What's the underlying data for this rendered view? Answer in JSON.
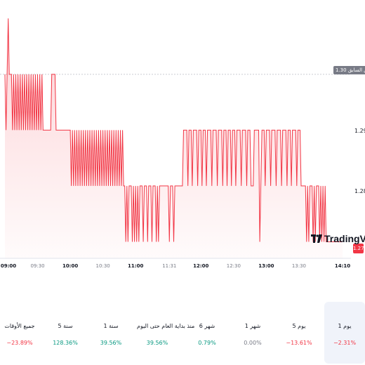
{
  "colors": {
    "down": "#f23645",
    "up": "#089981",
    "flat": "#787b86",
    "text": "#131722",
    "prev_line": "#c9cbd1"
  },
  "chart_data": {
    "type": "area",
    "x_ticks": [
      {
        "label": "09:00",
        "major": true
      },
      {
        "label": "09:30",
        "major": false
      },
      {
        "label": "10:00",
        "major": true
      },
      {
        "label": "10:30",
        "major": false
      },
      {
        "label": "11:00",
        "major": true
      },
      {
        "label": "11:31",
        "major": false
      },
      {
        "label": "12:00",
        "major": true
      },
      {
        "label": "12:30",
        "major": false
      },
      {
        "label": "13:00",
        "major": true
      },
      {
        "label": "13:30",
        "major": false
      },
      {
        "label": "14:10",
        "major": true
      }
    ],
    "y_ticks": [
      "1.29",
      "1.28"
    ],
    "ylim": [
      1.2683,
      1.3113
    ],
    "previous_close": {
      "label": "الإغلاق السابق",
      "value": "1.30"
    },
    "last_price": "1.27",
    "series": [
      {
        "points": [
          [
            "09:00",
            1.3
          ],
          [
            "09:01",
            1.29
          ],
          [
            "09:02",
            1.3
          ],
          [
            "09:03",
            1.31
          ],
          [
            "09:04",
            1.3
          ],
          [
            "09:06",
            1.3
          ],
          [
            "09:07",
            1.29
          ],
          [
            "09:08",
            1.3
          ],
          [
            "09:09",
            1.29
          ],
          [
            "09:10",
            1.3
          ],
          [
            "09:11",
            1.29
          ],
          [
            "09:12",
            1.3
          ],
          [
            "09:13",
            1.29
          ],
          [
            "09:14",
            1.3
          ],
          [
            "09:15",
            1.29
          ],
          [
            "09:16",
            1.3
          ],
          [
            "09:17",
            1.29
          ],
          [
            "09:18",
            1.3
          ],
          [
            "09:19",
            1.29
          ],
          [
            "09:20",
            1.3
          ],
          [
            "09:21",
            1.29
          ],
          [
            "09:22",
            1.3
          ],
          [
            "09:23",
            1.29
          ],
          [
            "09:24",
            1.3
          ],
          [
            "09:25",
            1.29
          ],
          [
            "09:26",
            1.3
          ],
          [
            "09:27",
            1.29
          ],
          [
            "09:28",
            1.3
          ],
          [
            "09:29",
            1.29
          ],
          [
            "09:30",
            1.3
          ],
          [
            "09:31",
            1.29
          ],
          [
            "09:32",
            1.3
          ],
          [
            "09:33",
            1.29
          ],
          [
            "09:34",
            1.3
          ],
          [
            "09:35",
            1.29
          ],
          [
            "09:42",
            1.29
          ],
          [
            "09:43",
            1.3
          ],
          [
            "09:46",
            1.3
          ],
          [
            "09:47",
            1.29
          ],
          [
            "10:00",
            1.29
          ],
          [
            "10:01",
            1.28
          ],
          [
            "10:02",
            1.29
          ],
          [
            "10:03",
            1.28
          ],
          [
            "10:04",
            1.29
          ],
          [
            "10:05",
            1.28
          ],
          [
            "10:06",
            1.29
          ],
          [
            "10:07",
            1.28
          ],
          [
            "10:08",
            1.29
          ],
          [
            "10:09",
            1.28
          ],
          [
            "10:10",
            1.29
          ],
          [
            "10:11",
            1.28
          ],
          [
            "10:12",
            1.29
          ],
          [
            "10:13",
            1.28
          ],
          [
            "10:14",
            1.29
          ],
          [
            "10:15",
            1.28
          ],
          [
            "10:16",
            1.29
          ],
          [
            "10:17",
            1.28
          ],
          [
            "10:18",
            1.29
          ],
          [
            "10:19",
            1.28
          ],
          [
            "10:20",
            1.29
          ],
          [
            "10:21",
            1.28
          ],
          [
            "10:22",
            1.29
          ],
          [
            "10:23",
            1.28
          ],
          [
            "10:24",
            1.29
          ],
          [
            "10:25",
            1.28
          ],
          [
            "10:26",
            1.29
          ],
          [
            "10:27",
            1.28
          ],
          [
            "10:28",
            1.29
          ],
          [
            "10:29",
            1.28
          ],
          [
            "10:30",
            1.29
          ],
          [
            "10:31",
            1.28
          ],
          [
            "10:32",
            1.29
          ],
          [
            "10:33",
            1.28
          ],
          [
            "10:34",
            1.29
          ],
          [
            "10:35",
            1.28
          ],
          [
            "10:36",
            1.29
          ],
          [
            "10:37",
            1.28
          ],
          [
            "10:38",
            1.29
          ],
          [
            "10:39",
            1.28
          ],
          [
            "10:40",
            1.29
          ],
          [
            "10:41",
            1.28
          ],
          [
            "10:42",
            1.29
          ],
          [
            "10:43",
            1.28
          ],
          [
            "10:44",
            1.29
          ],
          [
            "10:45",
            1.28
          ],
          [
            "10:46",
            1.29
          ],
          [
            "10:47",
            1.28
          ],
          [
            "10:48",
            1.29
          ],
          [
            "10:49",
            1.28
          ],
          [
            "10:50",
            1.28
          ],
          [
            "10:51",
            1.27
          ],
          [
            "10:52",
            1.28
          ],
          [
            "10:53",
            1.27
          ],
          [
            "10:54",
            1.28
          ],
          [
            "10:56",
            1.28
          ],
          [
            "10:57",
            1.27
          ],
          [
            "10:58",
            1.28
          ],
          [
            "10:59",
            1.27
          ],
          [
            "11:00",
            1.28
          ],
          [
            "11:01",
            1.27
          ],
          [
            "11:02",
            1.28
          ],
          [
            "11:03",
            1.27
          ],
          [
            "11:04",
            1.28
          ],
          [
            "11:06",
            1.28
          ],
          [
            "11:07",
            1.27
          ],
          [
            "11:08",
            1.28
          ],
          [
            "11:10",
            1.28
          ],
          [
            "11:11",
            1.27
          ],
          [
            "11:12",
            1.28
          ],
          [
            "11:14",
            1.28
          ],
          [
            "11:15",
            1.27
          ],
          [
            "11:16",
            1.28
          ],
          [
            "11:18",
            1.28
          ],
          [
            "11:19",
            1.27
          ],
          [
            "11:20",
            1.28
          ],
          [
            "11:21",
            1.27
          ],
          [
            "11:22",
            1.28
          ],
          [
            "11:30",
            1.28
          ],
          [
            "11:31",
            1.27
          ],
          [
            "11:32",
            1.28
          ],
          [
            "11:34",
            1.28
          ],
          [
            "11:35",
            1.27
          ],
          [
            "11:36",
            1.28
          ],
          [
            "11:43",
            1.28
          ],
          [
            "11:44",
            1.29
          ],
          [
            "11:47",
            1.29
          ],
          [
            "11:48",
            1.28
          ],
          [
            "11:49",
            1.29
          ],
          [
            "11:51",
            1.29
          ],
          [
            "11:52",
            1.28
          ],
          [
            "11:53",
            1.29
          ],
          [
            "11:56",
            1.29
          ],
          [
            "11:57",
            1.28
          ],
          [
            "11:58",
            1.29
          ],
          [
            "12:00",
            1.29
          ],
          [
            "12:01",
            1.28
          ],
          [
            "12:02",
            1.29
          ],
          [
            "12:04",
            1.29
          ],
          [
            "12:05",
            1.28
          ],
          [
            "12:06",
            1.29
          ],
          [
            "12:09",
            1.29
          ],
          [
            "12:10",
            1.28
          ],
          [
            "12:11",
            1.29
          ],
          [
            "12:14",
            1.29
          ],
          [
            "12:15",
            1.28
          ],
          [
            "12:16",
            1.29
          ],
          [
            "12:19",
            1.29
          ],
          [
            "12:20",
            1.28
          ],
          [
            "12:21",
            1.29
          ],
          [
            "12:23",
            1.29
          ],
          [
            "12:24",
            1.28
          ],
          [
            "12:25",
            1.29
          ],
          [
            "12:27",
            1.29
          ],
          [
            "12:28",
            1.28
          ],
          [
            "12:29",
            1.29
          ],
          [
            "12:31",
            1.29
          ],
          [
            "12:32",
            1.28
          ],
          [
            "12:33",
            1.29
          ],
          [
            "12:36",
            1.29
          ],
          [
            "12:37",
            1.28
          ],
          [
            "12:38",
            1.29
          ],
          [
            "12:41",
            1.29
          ],
          [
            "12:42",
            1.28
          ],
          [
            "12:43",
            1.29
          ],
          [
            "12:45",
            1.29
          ],
          [
            "12:46",
            1.28
          ],
          [
            "12:48",
            1.28
          ],
          [
            "12:49",
            1.29
          ],
          [
            "12:53",
            1.29
          ],
          [
            "12:54",
            1.27
          ],
          [
            "12:55",
            1.28
          ],
          [
            "12:56",
            1.29
          ],
          [
            "12:58",
            1.29
          ],
          [
            "12:59",
            1.28
          ],
          [
            "13:00",
            1.29
          ],
          [
            "13:03",
            1.29
          ],
          [
            "13:04",
            1.28
          ],
          [
            "13:05",
            1.29
          ],
          [
            "13:08",
            1.29
          ],
          [
            "13:09",
            1.28
          ],
          [
            "13:10",
            1.29
          ],
          [
            "13:13",
            1.29
          ],
          [
            "13:14",
            1.28
          ],
          [
            "13:15",
            1.29
          ],
          [
            "13:18",
            1.29
          ],
          [
            "13:19",
            1.28
          ],
          [
            "13:20",
            1.29
          ],
          [
            "13:22",
            1.29
          ],
          [
            "13:23",
            1.28
          ],
          [
            "13:24",
            1.29
          ],
          [
            "13:27",
            1.29
          ],
          [
            "13:28",
            1.28
          ],
          [
            "13:29",
            1.29
          ],
          [
            "13:31",
            1.29
          ],
          [
            "13:32",
            1.28
          ],
          [
            "13:36",
            1.28
          ],
          [
            "13:37",
            1.27
          ],
          [
            "13:38",
            1.28
          ],
          [
            "13:39",
            1.27
          ],
          [
            "13:40",
            1.28
          ],
          [
            "13:42",
            1.28
          ],
          [
            "13:43",
            1.27
          ],
          [
            "13:44",
            1.28
          ],
          [
            "13:45",
            1.27
          ],
          [
            "13:46",
            1.28
          ],
          [
            "13:48",
            1.28
          ],
          [
            "13:49",
            1.27
          ],
          [
            "13:50",
            1.28
          ],
          [
            "13:51",
            1.27
          ],
          [
            "13:52",
            1.28
          ],
          [
            "13:53",
            1.27
          ],
          [
            "13:54",
            1.28
          ],
          [
            "13:55",
            1.27
          ],
          [
            "14:10",
            1.27
          ]
        ]
      }
    ]
  },
  "watermark": "TradingView",
  "periods": [
    {
      "label": "جميع الأوقات",
      "value": "−23.89%",
      "tone": "neg"
    },
    {
      "label": "5 سنة",
      "value": "128.36%",
      "tone": "pos"
    },
    {
      "label": "1 سنة",
      "value": "39.56%",
      "tone": "pos"
    },
    {
      "label": "منذ بداية العام حتى اليوم",
      "value": "39.56%",
      "tone": "pos"
    },
    {
      "label": "6 شهر",
      "value": "0.79%",
      "tone": "pos"
    },
    {
      "label": "1 شهر",
      "value": "0.00%",
      "tone": "flat"
    },
    {
      "label": "5 يوم",
      "value": "−13.61%",
      "tone": "neg"
    },
    {
      "label": "1 يوم",
      "value": "−2.31%",
      "tone": "neg",
      "selected": true
    }
  ]
}
